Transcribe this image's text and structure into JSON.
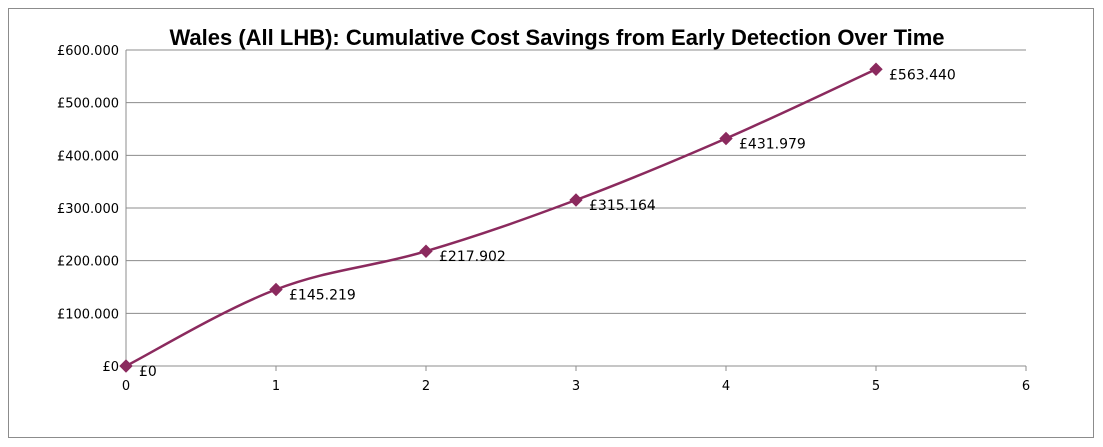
{
  "chart_data": {
    "type": "line",
    "title": "Wales (All LHB): Cumulative Cost Savings from Early Detection Over Time",
    "xlabel": "",
    "ylabel": "",
    "x": [
      0,
      1,
      2,
      3,
      4,
      5
    ],
    "series": [
      {
        "values": [
          0,
          145219,
          217902,
          315164,
          431979,
          563440
        ],
        "labels": [
          "£0",
          "£145.219",
          "£217.902",
          "£315.164",
          "£431.979",
          "£563.440"
        ],
        "color": "#8b2a5e",
        "marker": "diamond",
        "smooth": true
      }
    ],
    "xlim": [
      0,
      6
    ],
    "ylim": [
      0,
      600000
    ],
    "x_ticks": [
      "0",
      "1",
      "2",
      "3",
      "4",
      "5",
      "6"
    ],
    "y_ticks": [
      "£0",
      "£100.000",
      "£200.000",
      "£300.000",
      "£400.000",
      "£500.000",
      "£600.000"
    ],
    "grid": "horizontal",
    "legend": "none"
  }
}
